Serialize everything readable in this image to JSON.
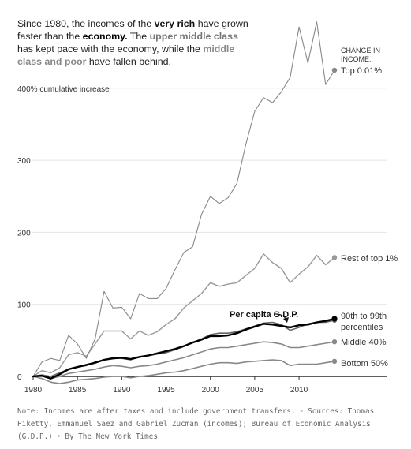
{
  "intro": {
    "p1": "Since 1980, the incomes of the ",
    "top": "very rich",
    "p2": " have grown faster than the ",
    "econ": "economy.",
    "p3": " The ",
    "upper": "upper middle class",
    "p4": " has kept pace with the economy, while the ",
    "mid": "middle class and poor",
    "p5": " have fallen behind."
  },
  "footer": {
    "note": "Note: Incomes are after taxes and include government transfers.",
    "sources": "Sources: Thomas Piketty, Emmanuel Saez and Gabriel Zucman (incomes); Bureau of Economic Analysis (G.D.P.)",
    "byline": "By The New York Times"
  },
  "colors": {
    "top001": "#888888",
    "rest1": "#999999",
    "p90_99": "#666666",
    "gdp": "#000000",
    "middle40": "#888888",
    "bottom50": "#888888",
    "baseline": "#000000",
    "grid": "#e4e4e4"
  },
  "chart_data": {
    "type": "line",
    "ylabel": "cumulative increase",
    "ylabel_full": "400% cumulative increase",
    "ylim": [
      0,
      450
    ],
    "xlim": [
      1980,
      2014
    ],
    "yticks": [
      0,
      100,
      200,
      300,
      400
    ],
    "ytick_labels": [
      "0",
      "100",
      "200",
      "300",
      "400"
    ],
    "xticks": [
      1980,
      1985,
      1990,
      1995,
      2000,
      2005,
      2010
    ],
    "xtick_labels": [
      "1980",
      "1985",
      "1990",
      "1995",
      "2000",
      "2005",
      "2010"
    ],
    "grid": true,
    "legend_title": "CHANGE IN INCOME:",
    "x": [
      1980,
      1981,
      1982,
      1983,
      1984,
      1985,
      1986,
      1987,
      1988,
      1989,
      1990,
      1991,
      1992,
      1993,
      1994,
      1995,
      1996,
      1997,
      1998,
      1999,
      2000,
      2001,
      2002,
      2003,
      2004,
      2005,
      2006,
      2007,
      2008,
      2009,
      2010,
      2011,
      2012,
      2013,
      2014
    ],
    "series": [
      {
        "key": "top001",
        "name": "Top 0.01%",
        "values": [
          0,
          20,
          25,
          22,
          57,
          45,
          25,
          52,
          118,
          95,
          96,
          80,
          115,
          108,
          108,
          122,
          148,
          172,
          180,
          225,
          250,
          240,
          248,
          268,
          322,
          368,
          387,
          380,
          395,
          415,
          485,
          435,
          492,
          405,
          425
        ]
      },
      {
        "key": "rest1",
        "name": "Rest of top 1%",
        "values": [
          0,
          8,
          5,
          12,
          30,
          33,
          28,
          45,
          63,
          63,
          63,
          52,
          63,
          57,
          62,
          72,
          80,
          95,
          105,
          115,
          130,
          125,
          128,
          130,
          140,
          150,
          170,
          158,
          150,
          130,
          142,
          152,
          168,
          155,
          165
        ]
      },
      {
        "key": "p90_99",
        "name": "90th to 99th percentiles",
        "values": [
          0,
          2,
          0,
          5,
          10,
          13,
          15,
          20,
          23,
          26,
          25,
          23,
          27,
          29,
          31,
          33,
          37,
          42,
          47,
          52,
          58,
          60,
          60,
          62,
          66,
          70,
          74,
          75,
          72,
          64,
          68,
          73,
          75,
          75,
          78
        ]
      },
      {
        "key": "gdp",
        "name": "Per capita G.D.P.",
        "values": [
          0,
          1,
          -3,
          3,
          10,
          13,
          16,
          19,
          23,
          25,
          26,
          24,
          27,
          29,
          32,
          35,
          38,
          42,
          47,
          51,
          56,
          56,
          57,
          60,
          65,
          69,
          73,
          72,
          70,
          68,
          71,
          72,
          75,
          77,
          80
        ]
      },
      {
        "key": "middle40",
        "name": "Middle 40%",
        "values": [
          0,
          2,
          -3,
          0,
          4,
          6,
          8,
          10,
          13,
          15,
          14,
          12,
          14,
          15,
          17,
          20,
          23,
          26,
          30,
          34,
          38,
          40,
          40,
          42,
          44,
          46,
          48,
          47,
          45,
          40,
          40,
          42,
          44,
          46,
          48
        ]
      },
      {
        "key": "bottom50",
        "name": "Bottom 50%",
        "values": [
          0,
          -3,
          -8,
          -10,
          -8,
          -5,
          -4,
          -3,
          -1,
          0,
          0,
          -2,
          0,
          1,
          3,
          5,
          6,
          8,
          11,
          14,
          17,
          19,
          19,
          18,
          20,
          21,
          22,
          23,
          22,
          15,
          17,
          17,
          17,
          19,
          21
        ]
      }
    ]
  }
}
